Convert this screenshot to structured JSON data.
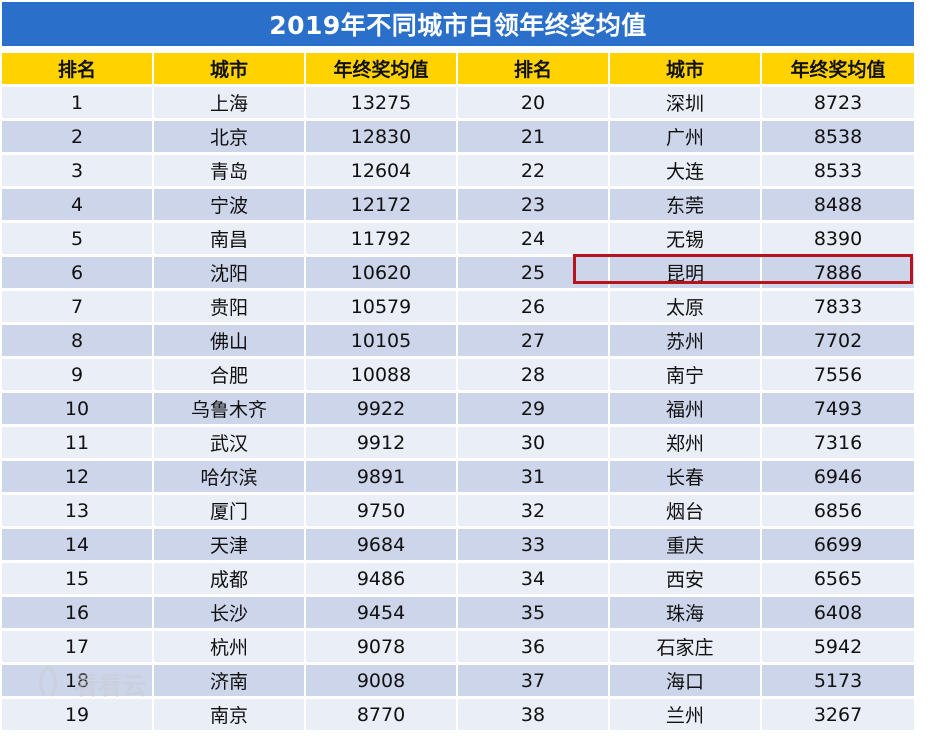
{
  "title": "2019年不同城市白领年终奖均值",
  "headers": [
    "排名",
    "城市",
    "年终奖均值",
    "排名",
    "城市",
    "年终奖均值"
  ],
  "rows": [
    [
      "1",
      "上海",
      "13275",
      "20",
      "深圳",
      "8723"
    ],
    [
      "2",
      "北京",
      "12830",
      "21",
      "广州",
      "8538"
    ],
    [
      "3",
      "青岛",
      "12604",
      "22",
      "大连",
      "8533"
    ],
    [
      "4",
      "宁波",
      "12172",
      "23",
      "东莞",
      "8488"
    ],
    [
      "5",
      "南昌",
      "11792",
      "24",
      "无锡",
      "8390"
    ],
    [
      "6",
      "沈阳",
      "10620",
      "25",
      "昆明",
      "7886"
    ],
    [
      "7",
      "贵阳",
      "10579",
      "26",
      "太原",
      "7833"
    ],
    [
      "8",
      "佛山",
      "10105",
      "27",
      "苏州",
      "7702"
    ],
    [
      "9",
      "合肥",
      "10088",
      "28",
      "南宁",
      "7556"
    ],
    [
      "10",
      "乌鲁木齐",
      "9922",
      "29",
      "福州",
      "7493"
    ],
    [
      "11",
      "武汉",
      "9912",
      "30",
      "郑州",
      "7316"
    ],
    [
      "12",
      "哈尔滨",
      "9891",
      "31",
      "长春",
      "6946"
    ],
    [
      "13",
      "厦门",
      "9750",
      "32",
      "烟台",
      "6856"
    ],
    [
      "14",
      "天津",
      "9684",
      "33",
      "重庆",
      "6699"
    ],
    [
      "15",
      "成都",
      "9486",
      "34",
      "西安",
      "6565"
    ],
    [
      "16",
      "长沙",
      "9454",
      "35",
      "珠海",
      "6408"
    ],
    [
      "17",
      "杭州",
      "9078",
      "36",
      "石家庄",
      "5942"
    ],
    [
      "18",
      "济南",
      "9008",
      "37",
      "海口",
      "5173"
    ],
    [
      "19",
      "南京",
      "8770",
      "38",
      "兰州",
      "3267"
    ]
  ],
  "highlighted_city": "昆明",
  "watermark": {
    "text": "看看云",
    "icon": "watermark-logo-icon"
  },
  "colors": {
    "title_bg": "#2a6fc9",
    "header_bg": "#ffd200",
    "row_light": "#e9eef7",
    "row_dark": "#cdd5ea",
    "highlight_border": "#b8121d"
  }
}
